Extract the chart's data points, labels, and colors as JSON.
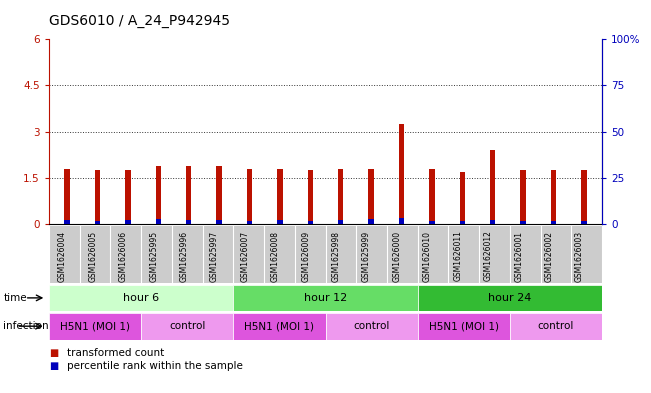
{
  "title": "GDS6010 / A_24_P942945",
  "samples": [
    "GSM1626004",
    "GSM1626005",
    "GSM1626006",
    "GSM1625995",
    "GSM1625996",
    "GSM1625997",
    "GSM1626007",
    "GSM1626008",
    "GSM1626009",
    "GSM1625998",
    "GSM1625999",
    "GSM1626000",
    "GSM1626010",
    "GSM1626011",
    "GSM1626012",
    "GSM1626001",
    "GSM1626002",
    "GSM1626003"
  ],
  "red_values": [
    1.8,
    1.75,
    1.75,
    1.9,
    1.9,
    1.9,
    1.8,
    1.8,
    1.75,
    1.8,
    1.8,
    3.25,
    1.8,
    1.7,
    2.4,
    1.75,
    1.75,
    1.75
  ],
  "blue_values": [
    0.14,
    0.1,
    0.13,
    0.15,
    0.12,
    0.13,
    0.11,
    0.13,
    0.11,
    0.13,
    0.16,
    0.2,
    0.11,
    0.09,
    0.13,
    0.11,
    0.09,
    0.11
  ],
  "ylim_left": [
    0,
    6
  ],
  "ylim_right": [
    0,
    100
  ],
  "yticks_left": [
    0,
    1.5,
    3.0,
    4.5,
    6.0
  ],
  "yticks_right": [
    0,
    25,
    50,
    75,
    100
  ],
  "ytick_labels_left": [
    "0",
    "1.5",
    "3",
    "4.5",
    "6"
  ],
  "ytick_labels_right": [
    "0",
    "25",
    "50",
    "75",
    "100%"
  ],
  "time_groups": [
    {
      "label": "hour 6",
      "start": 0,
      "end": 6,
      "color": "#ccffcc"
    },
    {
      "label": "hour 12",
      "start": 6,
      "end": 12,
      "color": "#66dd66"
    },
    {
      "label": "hour 24",
      "start": 12,
      "end": 18,
      "color": "#33bb33"
    }
  ],
  "infection_groups": [
    {
      "label": "H5N1 (MOI 1)",
      "start": 0,
      "end": 3,
      "color": "#dd55dd"
    },
    {
      "label": "control",
      "start": 3,
      "end": 6,
      "color": "#ee99ee"
    },
    {
      "label": "H5N1 (MOI 1)",
      "start": 6,
      "end": 9,
      "color": "#dd55dd"
    },
    {
      "label": "control",
      "start": 9,
      "end": 12,
      "color": "#ee99ee"
    },
    {
      "label": "H5N1 (MOI 1)",
      "start": 12,
      "end": 15,
      "color": "#dd55dd"
    },
    {
      "label": "control",
      "start": 15,
      "end": 18,
      "color": "#ee99ee"
    }
  ],
  "bar_width": 0.18,
  "red_color": "#bb1100",
  "blue_color": "#0000bb",
  "dotted_line_color": "#333333",
  "background_color": "#ffffff",
  "sample_bg_color": "#cccccc",
  "title_fontsize": 10,
  "tick_fontsize": 7.5,
  "legend_red": "transformed count",
  "legend_blue": "percentile rank within the sample"
}
